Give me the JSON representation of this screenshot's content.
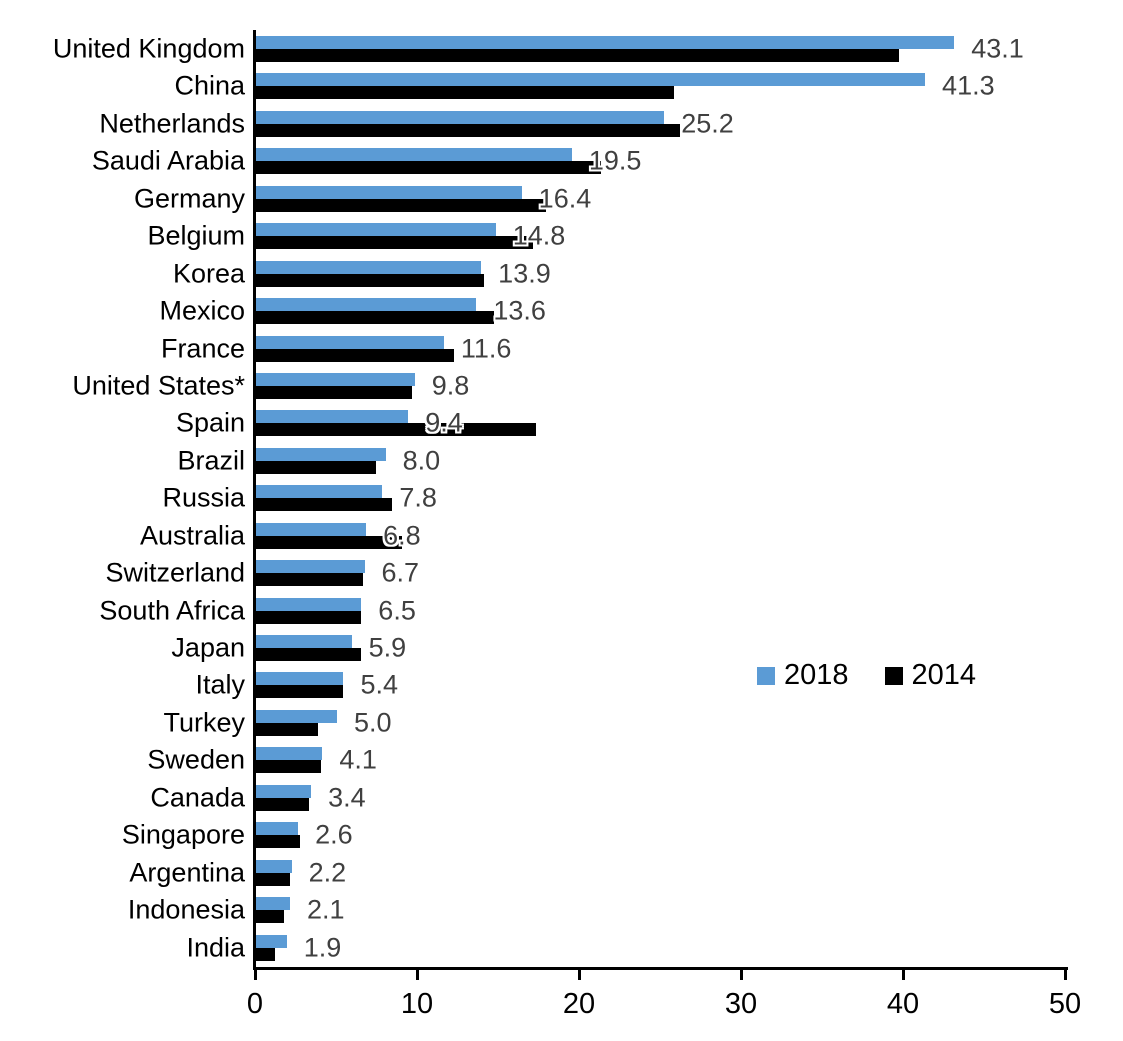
{
  "chart_data": {
    "type": "bar",
    "orientation": "horizontal",
    "title": "",
    "xlabel": "",
    "ylabel": "",
    "xlim": [
      0,
      50
    ],
    "x_ticks": [
      0,
      10,
      20,
      30,
      40,
      50
    ],
    "grid": false,
    "legend_position": "center-right",
    "value_label_series": "2018",
    "value_label_format": "one-decimal",
    "value_label_color": "#404040",
    "axis_color": "#000000",
    "categories": [
      "United Kingdom",
      "China",
      "Netherlands",
      "Saudi Arabia",
      "Germany",
      "Belgium",
      "Korea",
      "Mexico",
      "France",
      "United States*",
      "Spain",
      "Brazil",
      "Russia",
      "Australia",
      "Switzerland",
      "South Africa",
      "Japan",
      "Italy",
      "Turkey",
      "Sweden",
      "Canada",
      "Singapore",
      "Argentina",
      "Indonesia",
      "India"
    ],
    "series": [
      {
        "name": "2018",
        "color": "#5B9BD5",
        "values": [
          43.1,
          41.3,
          25.2,
          19.5,
          16.4,
          14.8,
          13.9,
          13.6,
          11.6,
          9.8,
          9.4,
          8.0,
          7.8,
          6.8,
          6.7,
          6.5,
          5.9,
          5.4,
          5.0,
          4.1,
          3.4,
          2.6,
          2.2,
          2.1,
          1.9
        ]
      },
      {
        "name": "2014",
        "color": "#000000",
        "values": [
          39.7,
          25.8,
          26.2,
          21.3,
          17.9,
          17.1,
          14.1,
          14.7,
          12.2,
          9.6,
          17.3,
          7.4,
          8.4,
          9.0,
          6.6,
          6.5,
          6.5,
          5.4,
          3.8,
          4.0,
          3.3,
          2.7,
          2.1,
          1.7,
          1.2
        ]
      }
    ]
  }
}
